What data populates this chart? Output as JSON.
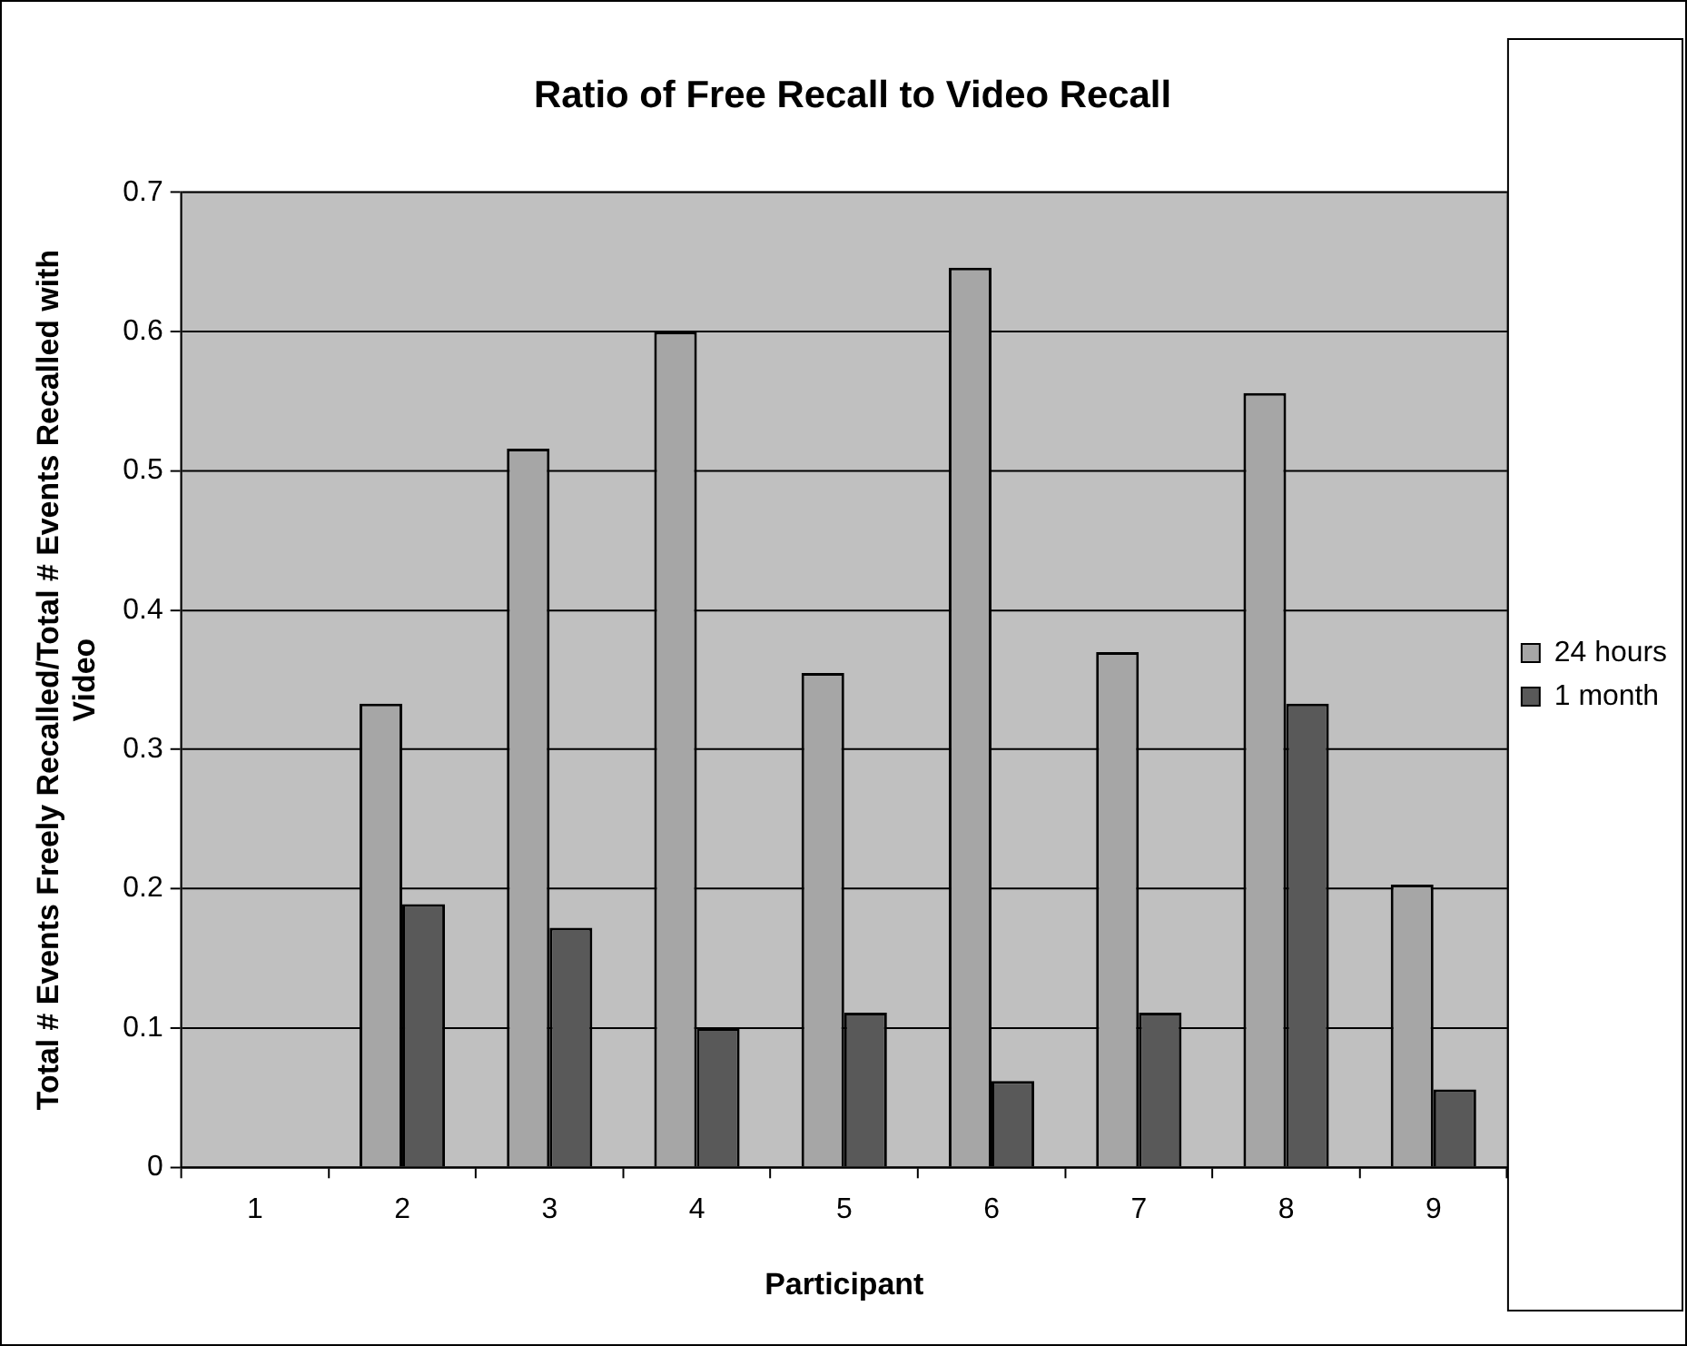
{
  "chart_data": {
    "type": "bar",
    "title": "Ratio of Free Recall to Video Recall",
    "xlabel": "Participant",
    "ylabel": "Total # Events Freely Recalled/Total # Events Recalled with Video",
    "categories": [
      "1",
      "2",
      "3",
      "4",
      "5",
      "6",
      "7",
      "8",
      "9"
    ],
    "series": [
      {
        "name": "24 hours",
        "color": "#a6a6a6",
        "values": [
          null,
          0.333,
          0.516,
          0.6,
          0.355,
          0.646,
          0.37,
          0.556,
          0.203
        ]
      },
      {
        "name": "1 month",
        "color": "#595959",
        "values": [
          null,
          0.189,
          0.172,
          0.1,
          0.111,
          0.062,
          0.111,
          0.333,
          0.056
        ]
      }
    ],
    "ylim": [
      0,
      0.7
    ],
    "yticks": [
      0,
      0.1,
      0.2,
      0.3,
      0.4,
      0.5,
      0.6,
      0.7
    ],
    "grid": "y",
    "legend": "right"
  }
}
